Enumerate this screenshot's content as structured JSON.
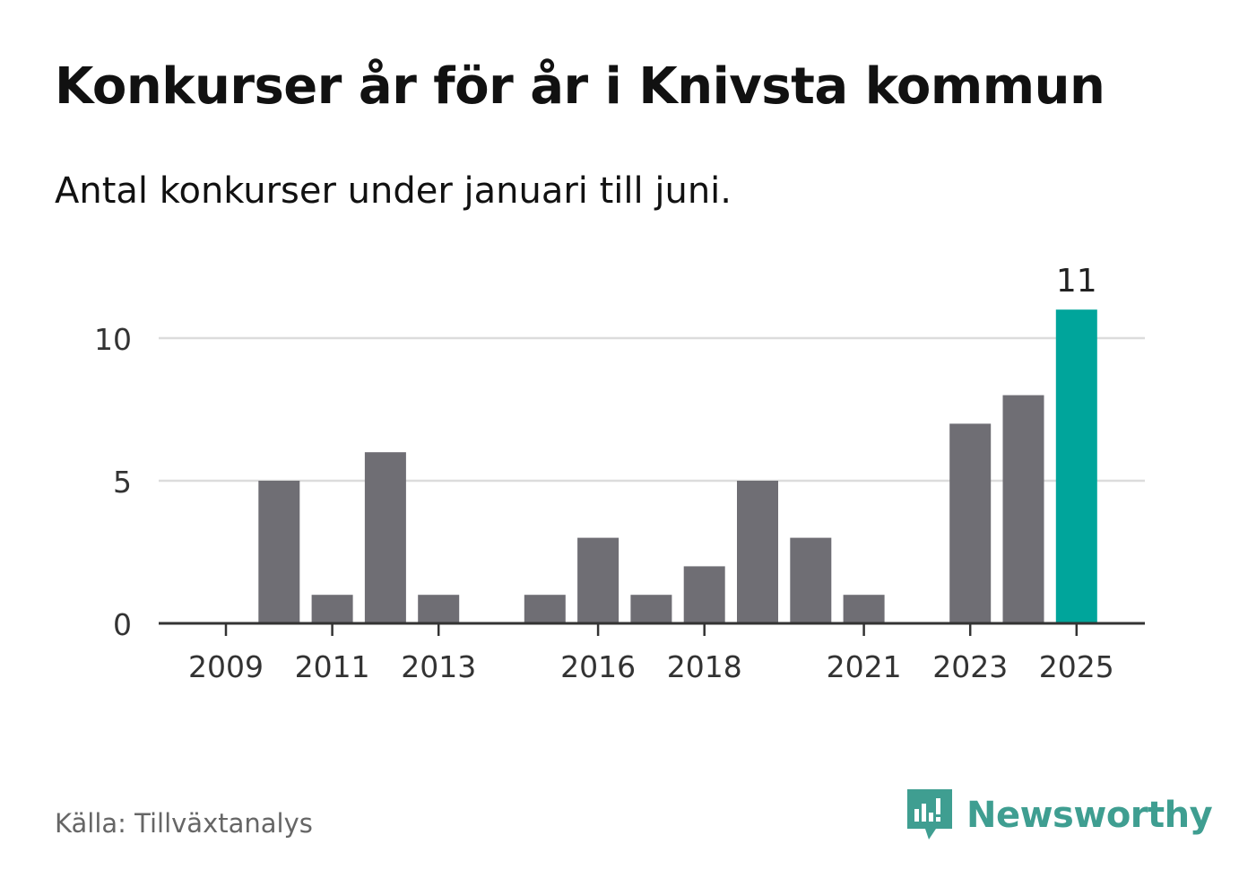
{
  "title": "Konkurser år för år i Knivsta kommun",
  "subtitle": "Antal konkurser under januari till juni.",
  "source": "Källa: Tillväxtanalys",
  "logo": {
    "icon": "newsworthy-logo-icon",
    "text": "Newsworthy"
  },
  "colors": {
    "bar": "#6f6e74",
    "highlight": "#00a59b",
    "grid": "#dcdcdc",
    "axis": "#333333",
    "logo": "#3f9e91"
  },
  "chart_data": {
    "type": "bar",
    "categories": [
      "2009",
      "2010",
      "2011",
      "2012",
      "2013",
      "2014",
      "2015",
      "2016",
      "2017",
      "2018",
      "2019",
      "2020",
      "2021",
      "2022",
      "2023",
      "2024",
      "2025"
    ],
    "values": [
      0,
      5,
      1,
      6,
      1,
      0,
      1,
      3,
      1,
      2,
      5,
      3,
      1,
      0,
      7,
      8,
      11
    ],
    "x_tick_labels": [
      "2009",
      "2011",
      "2013",
      "2016",
      "2018",
      "2021",
      "2023",
      "2025"
    ],
    "y_ticks": [
      0,
      5,
      10
    ],
    "ylim": [
      0,
      11
    ],
    "highlight": {
      "category": "2025",
      "label": "11"
    },
    "grid": true,
    "legend": "none",
    "xlabel": "",
    "ylabel": ""
  }
}
